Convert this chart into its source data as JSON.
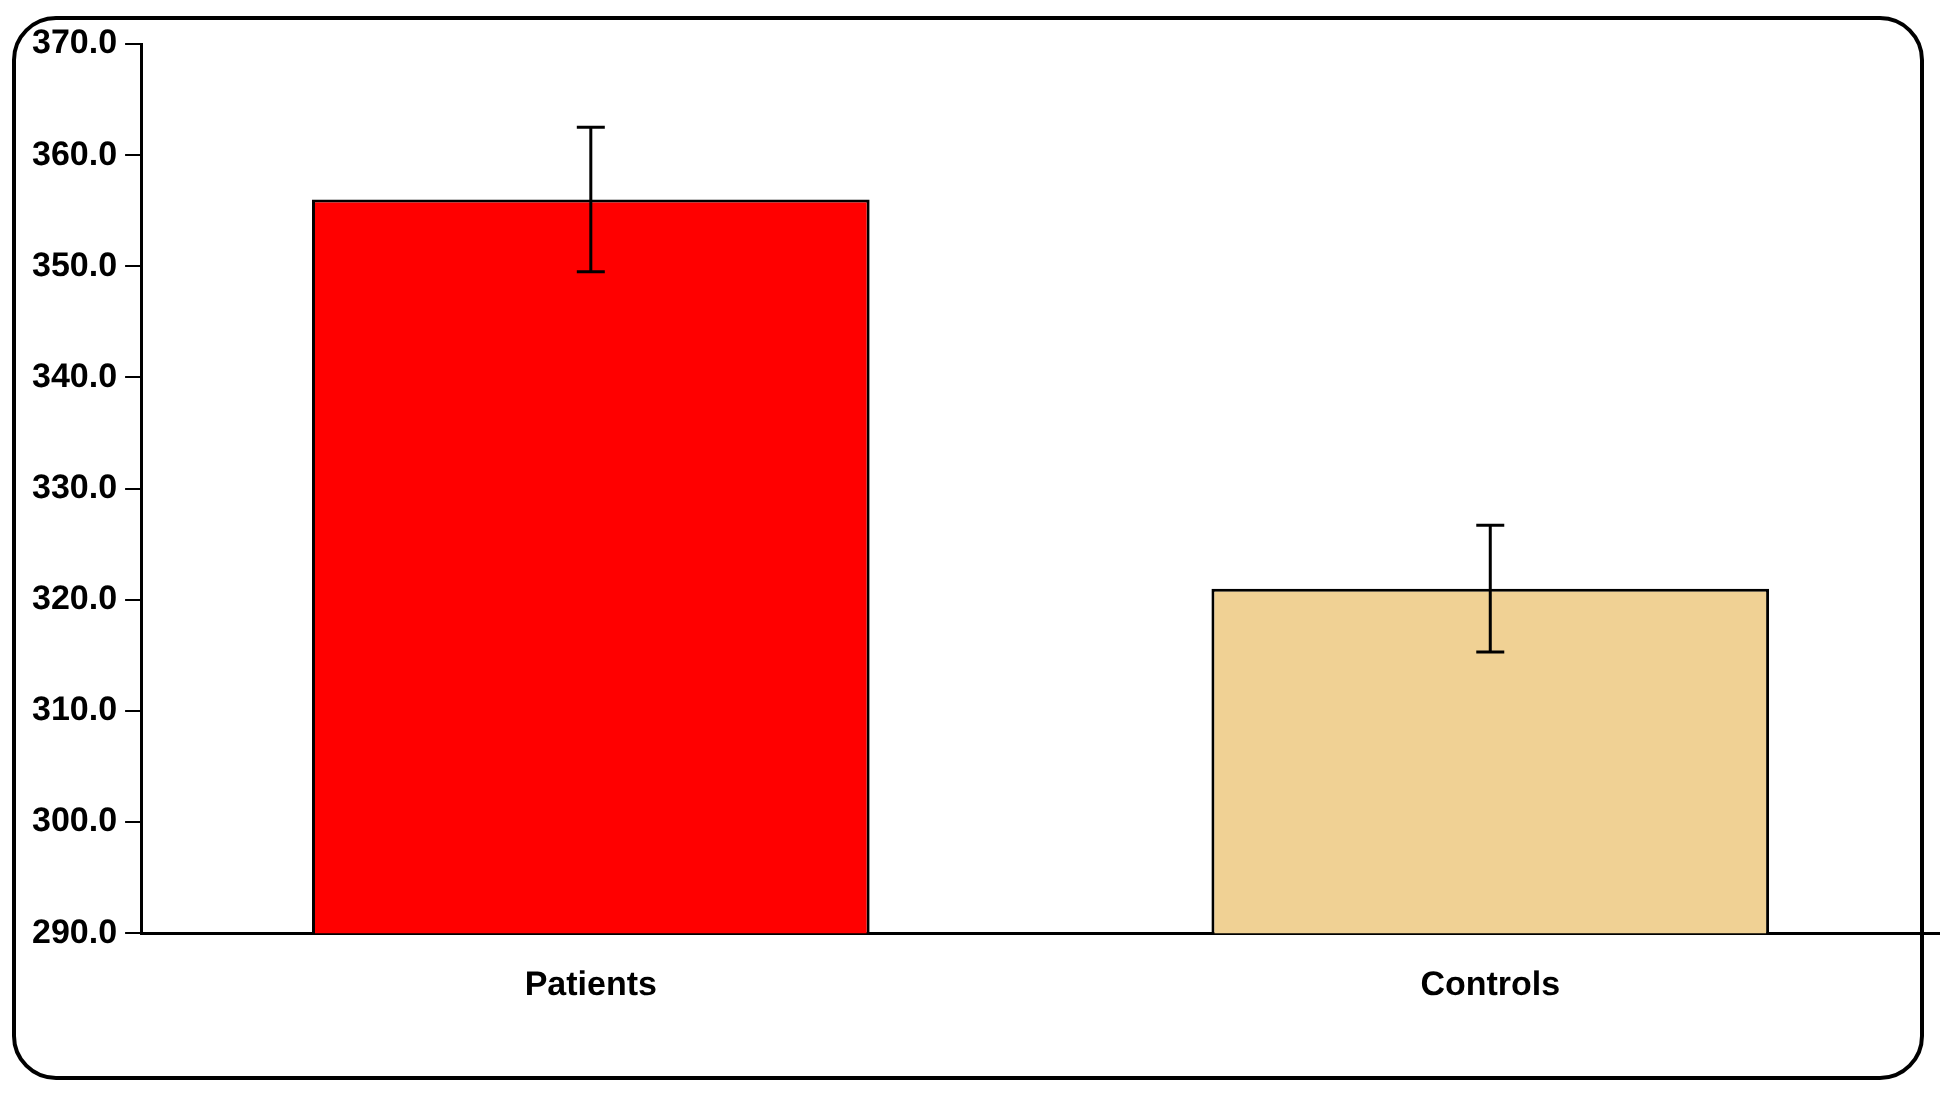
{
  "chart_data": {
    "type": "bar",
    "categories": [
      "Patients",
      "Controls"
    ],
    "values": [
      356.0,
      321.0
    ],
    "errors": [
      6.5,
      5.7
    ],
    "colors": [
      "#ff0000",
      "#f0d194"
    ],
    "ylim": [
      290,
      370
    ],
    "yticks": [
      {
        "value": 290,
        "label": "290.0"
      },
      {
        "value": 300,
        "label": "300.0"
      },
      {
        "value": 310,
        "label": "310.0"
      },
      {
        "value": 320,
        "label": "320.0"
      },
      {
        "value": 330,
        "label": "330.0"
      },
      {
        "value": 340,
        "label": "340.0"
      },
      {
        "value": 350,
        "label": "350.0"
      },
      {
        "value": 360,
        "label": "360.0"
      },
      {
        "value": 370,
        "label": "370.0"
      }
    ],
    "grid": false,
    "legend": false
  }
}
